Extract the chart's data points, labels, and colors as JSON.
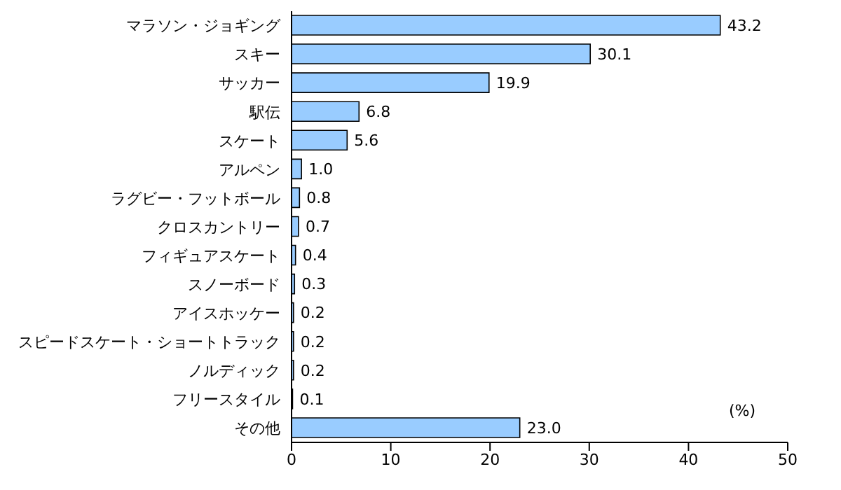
{
  "chart_data": {
    "type": "bar",
    "orientation": "horizontal",
    "categories": [
      "マラソン・ジョギング",
      "スキー",
      "サッカー",
      "駅伝",
      "スケート",
      "アルペン",
      "ラグビー・フットボール",
      "クロスカントリー",
      "フィギュアスケート",
      "スノーボード",
      "アイスホッケー",
      "スピードスケート・ショートトラック",
      "ノルディック",
      "フリースタイル",
      "その他"
    ],
    "values": [
      43.2,
      30.1,
      19.9,
      6.8,
      5.6,
      1.0,
      0.8,
      0.7,
      0.4,
      0.3,
      0.2,
      0.2,
      0.2,
      0.1,
      23.0
    ],
    "value_labels": [
      "43.2",
      "30.1",
      "19.9",
      "6.8",
      "5.6",
      "1.0",
      "0.8",
      "0.7",
      "0.4",
      "0.3",
      "0.2",
      "0.2",
      "0.2",
      "0.1",
      "23.0"
    ],
    "color": "#99ccff",
    "xlim": [
      0,
      50
    ],
    "xticks": [
      0,
      10,
      20,
      30,
      40,
      50
    ],
    "annotations": [
      "(%)"
    ],
    "grid": false,
    "legend": false
  }
}
